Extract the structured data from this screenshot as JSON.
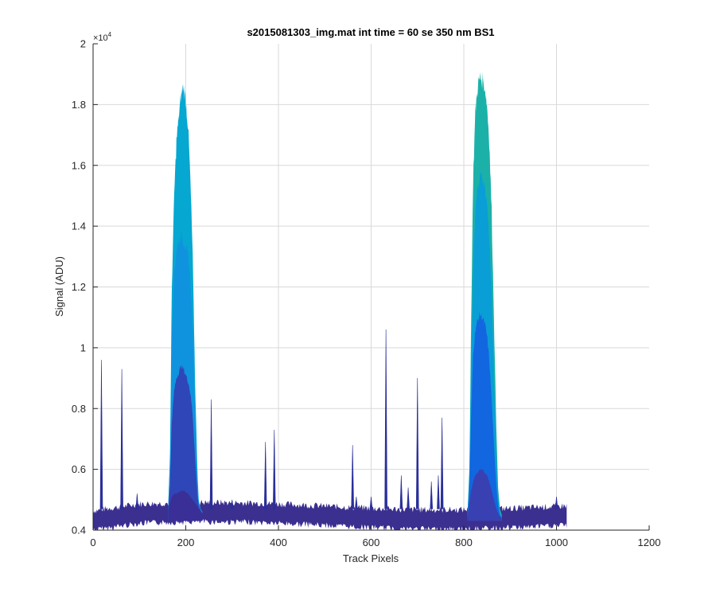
{
  "chart_data": {
    "type": "area",
    "title": "s2015081303_img.mat int time = 60 se  350 nm BS1",
    "xlabel": "Track Pixels",
    "ylabel": "Signal (ADU)",
    "y_exponent_label": "×10",
    "y_exponent_power": "4",
    "xlim": [
      0,
      1200
    ],
    "ylim": [
      4000,
      20000
    ],
    "grid": true,
    "x_ticks": [
      0,
      200,
      400,
      600,
      800,
      1000,
      1200
    ],
    "x_tick_labels": [
      "0",
      "200",
      "400",
      "600",
      "800",
      "1000",
      "1200"
    ],
    "y_ticks": [
      4000,
      6000,
      8000,
      10000,
      12000,
      14000,
      16000,
      18000,
      20000
    ],
    "y_tick_labels": [
      "0.4",
      "0.6",
      "0.8",
      "1",
      "1.2",
      "1.4",
      "1.6",
      "1.8",
      "2"
    ],
    "baseline": {
      "x_start": 0,
      "x_end": 1023,
      "value": 4500
    },
    "peaks": [
      {
        "name": "peak-1",
        "profile_x": [
          162,
          166,
          170,
          175,
          180,
          185,
          190,
          195,
          200,
          205,
          210,
          215,
          220,
          225,
          228,
          232,
          236
        ],
        "layers": [
          {
            "color": "#06a7d0",
            "y": [
              4700,
              6500,
              12000,
              15000,
              16800,
              17600,
              18300,
              18600,
              18100,
              17300,
              15500,
              13000,
              9000,
              6000,
              5000,
              4700,
              4600
            ]
          },
          {
            "color": "#0f93de",
            "y": [
              4700,
              6200,
              10500,
              12400,
              13200,
              13500,
              13700,
              13500,
              13300,
              13000,
              12200,
              10500,
              8000,
              5600,
              4900,
              4700,
              4600
            ]
          },
          {
            "color": "#2f46b8",
            "y": [
              4650,
              5500,
              7600,
              8600,
              9000,
              9200,
              9400,
              9300,
              9100,
              8900,
              8500,
              7800,
              6400,
              5200,
              4800,
              4650,
              4550
            ]
          },
          {
            "color": "#3a2f97",
            "y": [
              4650,
              4900,
              5100,
              5200,
              5200,
              5250,
              5300,
              5300,
              5250,
              5200,
              5100,
              5000,
              4900,
              4800,
              4700,
              4650,
              4550
            ]
          }
        ]
      },
      {
        "name": "peak-2",
        "profile_x": [
          808,
          812,
          816,
          820,
          825,
          830,
          835,
          840,
          845,
          850,
          855,
          860,
          865,
          870,
          874,
          878,
          882
        ],
        "layers": [
          {
            "color": "#1cb1a8",
            "y": [
              4500,
              6000,
              11000,
              15500,
              17800,
              18600,
              18900,
              18800,
              18600,
              18000,
              16800,
              14500,
              11000,
              7500,
              5400,
              4700,
              4500
            ]
          },
          {
            "color": "#0a9ed6",
            "y": [
              4500,
              5800,
              9500,
              12500,
              14500,
              15300,
              15700,
              15600,
              15300,
              14800,
              13600,
              11800,
              9000,
              6500,
              5100,
              4600,
              4400
            ]
          },
          {
            "color": "#1266e0",
            "y": [
              4450,
              5400,
              7800,
              9800,
              10600,
              10900,
              11100,
              11000,
              10800,
              10400,
              9600,
              8300,
              6800,
              5500,
              4800,
              4500,
              4400
            ]
          },
          {
            "color": "#3940b2",
            "y": [
              4450,
              4900,
              5300,
              5600,
              5800,
              5900,
              6000,
              6000,
              5900,
              5800,
              5600,
              5300,
              5000,
              4700,
              4550,
              4450,
              4400
            ]
          }
        ]
      }
    ],
    "spikes": [
      {
        "x": 18,
        "y": 9600
      },
      {
        "x": 62,
        "y": 9300
      },
      {
        "x": 95,
        "y": 5200
      },
      {
        "x": 255,
        "y": 8300
      },
      {
        "x": 300,
        "y": 5000
      },
      {
        "x": 372,
        "y": 6900
      },
      {
        "x": 391,
        "y": 7300
      },
      {
        "x": 560,
        "y": 6800
      },
      {
        "x": 568,
        "y": 5100
      },
      {
        "x": 600,
        "y": 5100
      },
      {
        "x": 632,
        "y": 10600
      },
      {
        "x": 665,
        "y": 5800
      },
      {
        "x": 680,
        "y": 5400
      },
      {
        "x": 700,
        "y": 9000
      },
      {
        "x": 730,
        "y": 5600
      },
      {
        "x": 745,
        "y": 5800
      },
      {
        "x": 753,
        "y": 7700
      },
      {
        "x": 1000,
        "y": 5100
      }
    ],
    "colors": {
      "baseline": "#3b2f8f",
      "spike": "#2a2f9a",
      "grid": "#d9d9d9",
      "axis": "#262626",
      "background": "#ffffff"
    }
  }
}
